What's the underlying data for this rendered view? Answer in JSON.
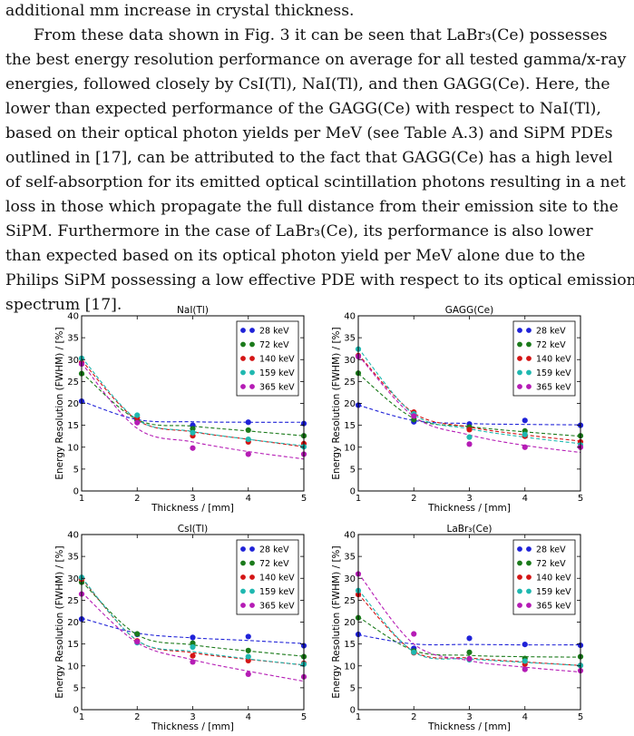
{
  "paragraph": {
    "lines": [
      "additional mm increase in crystal thickness.",
      "From these data shown in Fig. 3 it can be seen that LaBr₃(Ce) possesses",
      "the best energy resolution performance on average for all tested gamma/x-ray",
      "energies, followed closely by CsI(Tl), NaI(Tl), and then GAGG(Ce). Here, the",
      "lower than expected performance of the GAGG(Ce) with respect to NaI(Tl),",
      "based on their optical photon yields per MeV (see Table A.3) and SiPM PDEs",
      "outlined in [17], can be attributed to the fact that GAGG(Ce) has a high level",
      "of self-absorption for its emitted optical scintillation photons resulting in a net",
      "loss in those which propagate the full distance from their emission site to the",
      "SiPM. Furthermore in the case of LaBr₃(Ce), its performance is also lower",
      "than expected based on its optical photon yield per MeV alone due to the",
      "Philips SiPM possessing a low effective PDE with respect to its optical emission",
      "spectrum [17]."
    ]
  },
  "colors": {
    "28 keV": "#1f22d8",
    "72 keV": "#1a7a1a",
    "140 keV": "#d41515",
    "159 keV": "#1fb8b0",
    "365 keV": "#b51cb5"
  },
  "chart_data": [
    {
      "type": "scatter",
      "title": "NaI(Tl)",
      "xlabel": "Thickness / [mm]",
      "ylabel": "Energy Resolution (FWHM) / [%]",
      "xlim": [
        1,
        5
      ],
      "ylim": [
        0,
        40
      ],
      "xticks": [
        1,
        2,
        3,
        4,
        5
      ],
      "yticks": [
        0,
        5,
        10,
        15,
        20,
        25,
        30,
        35,
        40
      ],
      "legend": "top-right",
      "x": [
        1,
        2,
        3,
        4,
        5
      ],
      "series": [
        {
          "name": "28 keV",
          "values": [
            20.5,
            16.2,
            15.0,
            15.7,
            15.4
          ],
          "fit": [
            20.5,
            16.3,
            15.8,
            15.7,
            15.7
          ]
        },
        {
          "name": "72 keV",
          "values": [
            26.8,
            16.1,
            14.2,
            13.9,
            12.6
          ],
          "fit": [
            27.0,
            16.3,
            14.8,
            13.7,
            12.6
          ]
        },
        {
          "name": "140 keV",
          "values": [
            29.3,
            16.7,
            12.6,
            11.2,
            10.8
          ],
          "fit": [
            29.8,
            16.2,
            13.5,
            11.8,
            10.1
          ]
        },
        {
          "name": "159 keV",
          "values": [
            30.3,
            17.3,
            13.3,
            11.8,
            10.1
          ],
          "fit": [
            30.5,
            16.3,
            13.6,
            11.8,
            10.3
          ]
        },
        {
          "name": "365 keV",
          "values": [
            29.0,
            15.6,
            9.8,
            8.4,
            8.4
          ],
          "fit": [
            29.2,
            14.3,
            11.2,
            9.0,
            7.3
          ]
        }
      ]
    },
    {
      "type": "scatter",
      "title": "GAGG(Ce)",
      "xlabel": "Thickness / [mm]",
      "ylabel": "Energy Resolution (FWHM) / [%]",
      "xlim": [
        1,
        5
      ],
      "ylim": [
        0,
        40
      ],
      "xticks": [
        1,
        2,
        3,
        4,
        5
      ],
      "yticks": [
        0,
        5,
        10,
        15,
        20,
        25,
        30,
        35,
        40
      ],
      "legend": "top-right",
      "x": [
        1,
        2,
        3,
        4,
        5
      ],
      "series": [
        {
          "name": "28 keV",
          "values": [
            19.6,
            15.8,
            15.3,
            16.1,
            15.0
          ],
          "fit": [
            19.6,
            16.1,
            15.4,
            15.2,
            15.1
          ]
        },
        {
          "name": "72 keV",
          "values": [
            26.9,
            16.3,
            14.6,
            13.7,
            12.6
          ],
          "fit": [
            26.8,
            16.6,
            14.7,
            13.5,
            12.5
          ]
        },
        {
          "name": "140 keV",
          "values": [
            30.9,
            18.0,
            14.0,
            12.5,
            11.2
          ],
          "fit": [
            31.2,
            17.8,
            14.6,
            12.8,
            11.4
          ]
        },
        {
          "name": "159 keV",
          "values": [
            32.4,
            17.6,
            12.3,
            12.9,
            10.5
          ],
          "fit": [
            32.6,
            17.5,
            14.2,
            12.3,
            10.8
          ]
        },
        {
          "name": "365 keV",
          "values": [
            30.7,
            17.1,
            10.7,
            10.0,
            10.0
          ],
          "fit": [
            31.0,
            17.0,
            12.8,
            10.4,
            8.8
          ]
        }
      ]
    },
    {
      "type": "scatter",
      "title": "CsI(Tl)",
      "xlabel": "Thickness / [mm]",
      "ylabel": "Energy Resolution (FWHM) / [%]",
      "xlim": [
        1,
        5
      ],
      "ylim": [
        0,
        40
      ],
      "xticks": [
        1,
        2,
        3,
        4,
        5
      ],
      "yticks": [
        0,
        5,
        10,
        15,
        20,
        25,
        30,
        35,
        40
      ],
      "legend": "top-right",
      "x": [
        1,
        2,
        3,
        4,
        5
      ],
      "series": [
        {
          "name": "28 keV",
          "values": [
            20.7,
            17.2,
            16.5,
            16.7,
            14.6
          ],
          "fit": [
            20.9,
            17.5,
            16.4,
            15.8,
            15.1
          ]
        },
        {
          "name": "72 keV",
          "values": [
            29.1,
            17.3,
            15.2,
            13.5,
            12.1
          ],
          "fit": [
            29.3,
            17.1,
            14.8,
            13.4,
            12.2
          ]
        },
        {
          "name": "140 keV",
          "values": [
            29.8,
            15.7,
            12.3,
            11.2,
            10.6
          ],
          "fit": [
            30.0,
            15.8,
            13.0,
            11.5,
            10.2
          ]
        },
        {
          "name": "159 keV",
          "values": [
            30.2,
            15.3,
            14.3,
            12.1,
            10.4
          ],
          "fit": [
            30.2,
            15.8,
            13.3,
            11.6,
            10.2
          ]
        },
        {
          "name": "365 keV",
          "values": [
            26.4,
            15.5,
            10.9,
            8.1,
            7.5
          ],
          "fit": [
            26.8,
            15.3,
            11.4,
            8.8,
            6.5
          ]
        }
      ]
    },
    {
      "type": "scatter",
      "title": "LaBr₃(Ce)",
      "xlabel": "Thickness / [mm]",
      "ylabel": "Energy Resolution (FWHM) / [%]",
      "xlim": [
        1,
        5
      ],
      "ylim": [
        0,
        40
      ],
      "xticks": [
        1,
        2,
        3,
        4,
        5
      ],
      "yticks": [
        0,
        5,
        10,
        15,
        20,
        25,
        30,
        35,
        40
      ],
      "legend": "top-right",
      "x": [
        1,
        2,
        3,
        4,
        5
      ],
      "series": [
        {
          "name": "28 keV",
          "values": [
            17.2,
            14.0,
            16.3,
            14.9,
            14.7
          ],
          "fit": [
            17.1,
            15.0,
            14.9,
            14.8,
            14.8
          ]
        },
        {
          "name": "72 keV",
          "values": [
            21.0,
            13.4,
            13.1,
            11.7,
            12.1
          ],
          "fit": [
            21.2,
            13.5,
            12.4,
            12.1,
            12.0
          ]
        },
        {
          "name": "140 keV",
          "values": [
            26.3,
            13.0,
            11.6,
            10.4,
            10.1
          ],
          "fit": [
            26.4,
            13.3,
            11.8,
            10.9,
            10.1
          ]
        },
        {
          "name": "159 keV",
          "values": [
            27.2,
            13.1,
            11.4,
            11.1,
            10.1
          ],
          "fit": [
            27.4,
            13.2,
            11.6,
            10.8,
            10.1
          ]
        },
        {
          "name": "365 keV",
          "values": [
            31.0,
            17.3,
            11.6,
            9.2,
            8.9
          ],
          "fit": [
            31.2,
            15.0,
            11.2,
            9.7,
            8.6
          ]
        }
      ]
    }
  ]
}
